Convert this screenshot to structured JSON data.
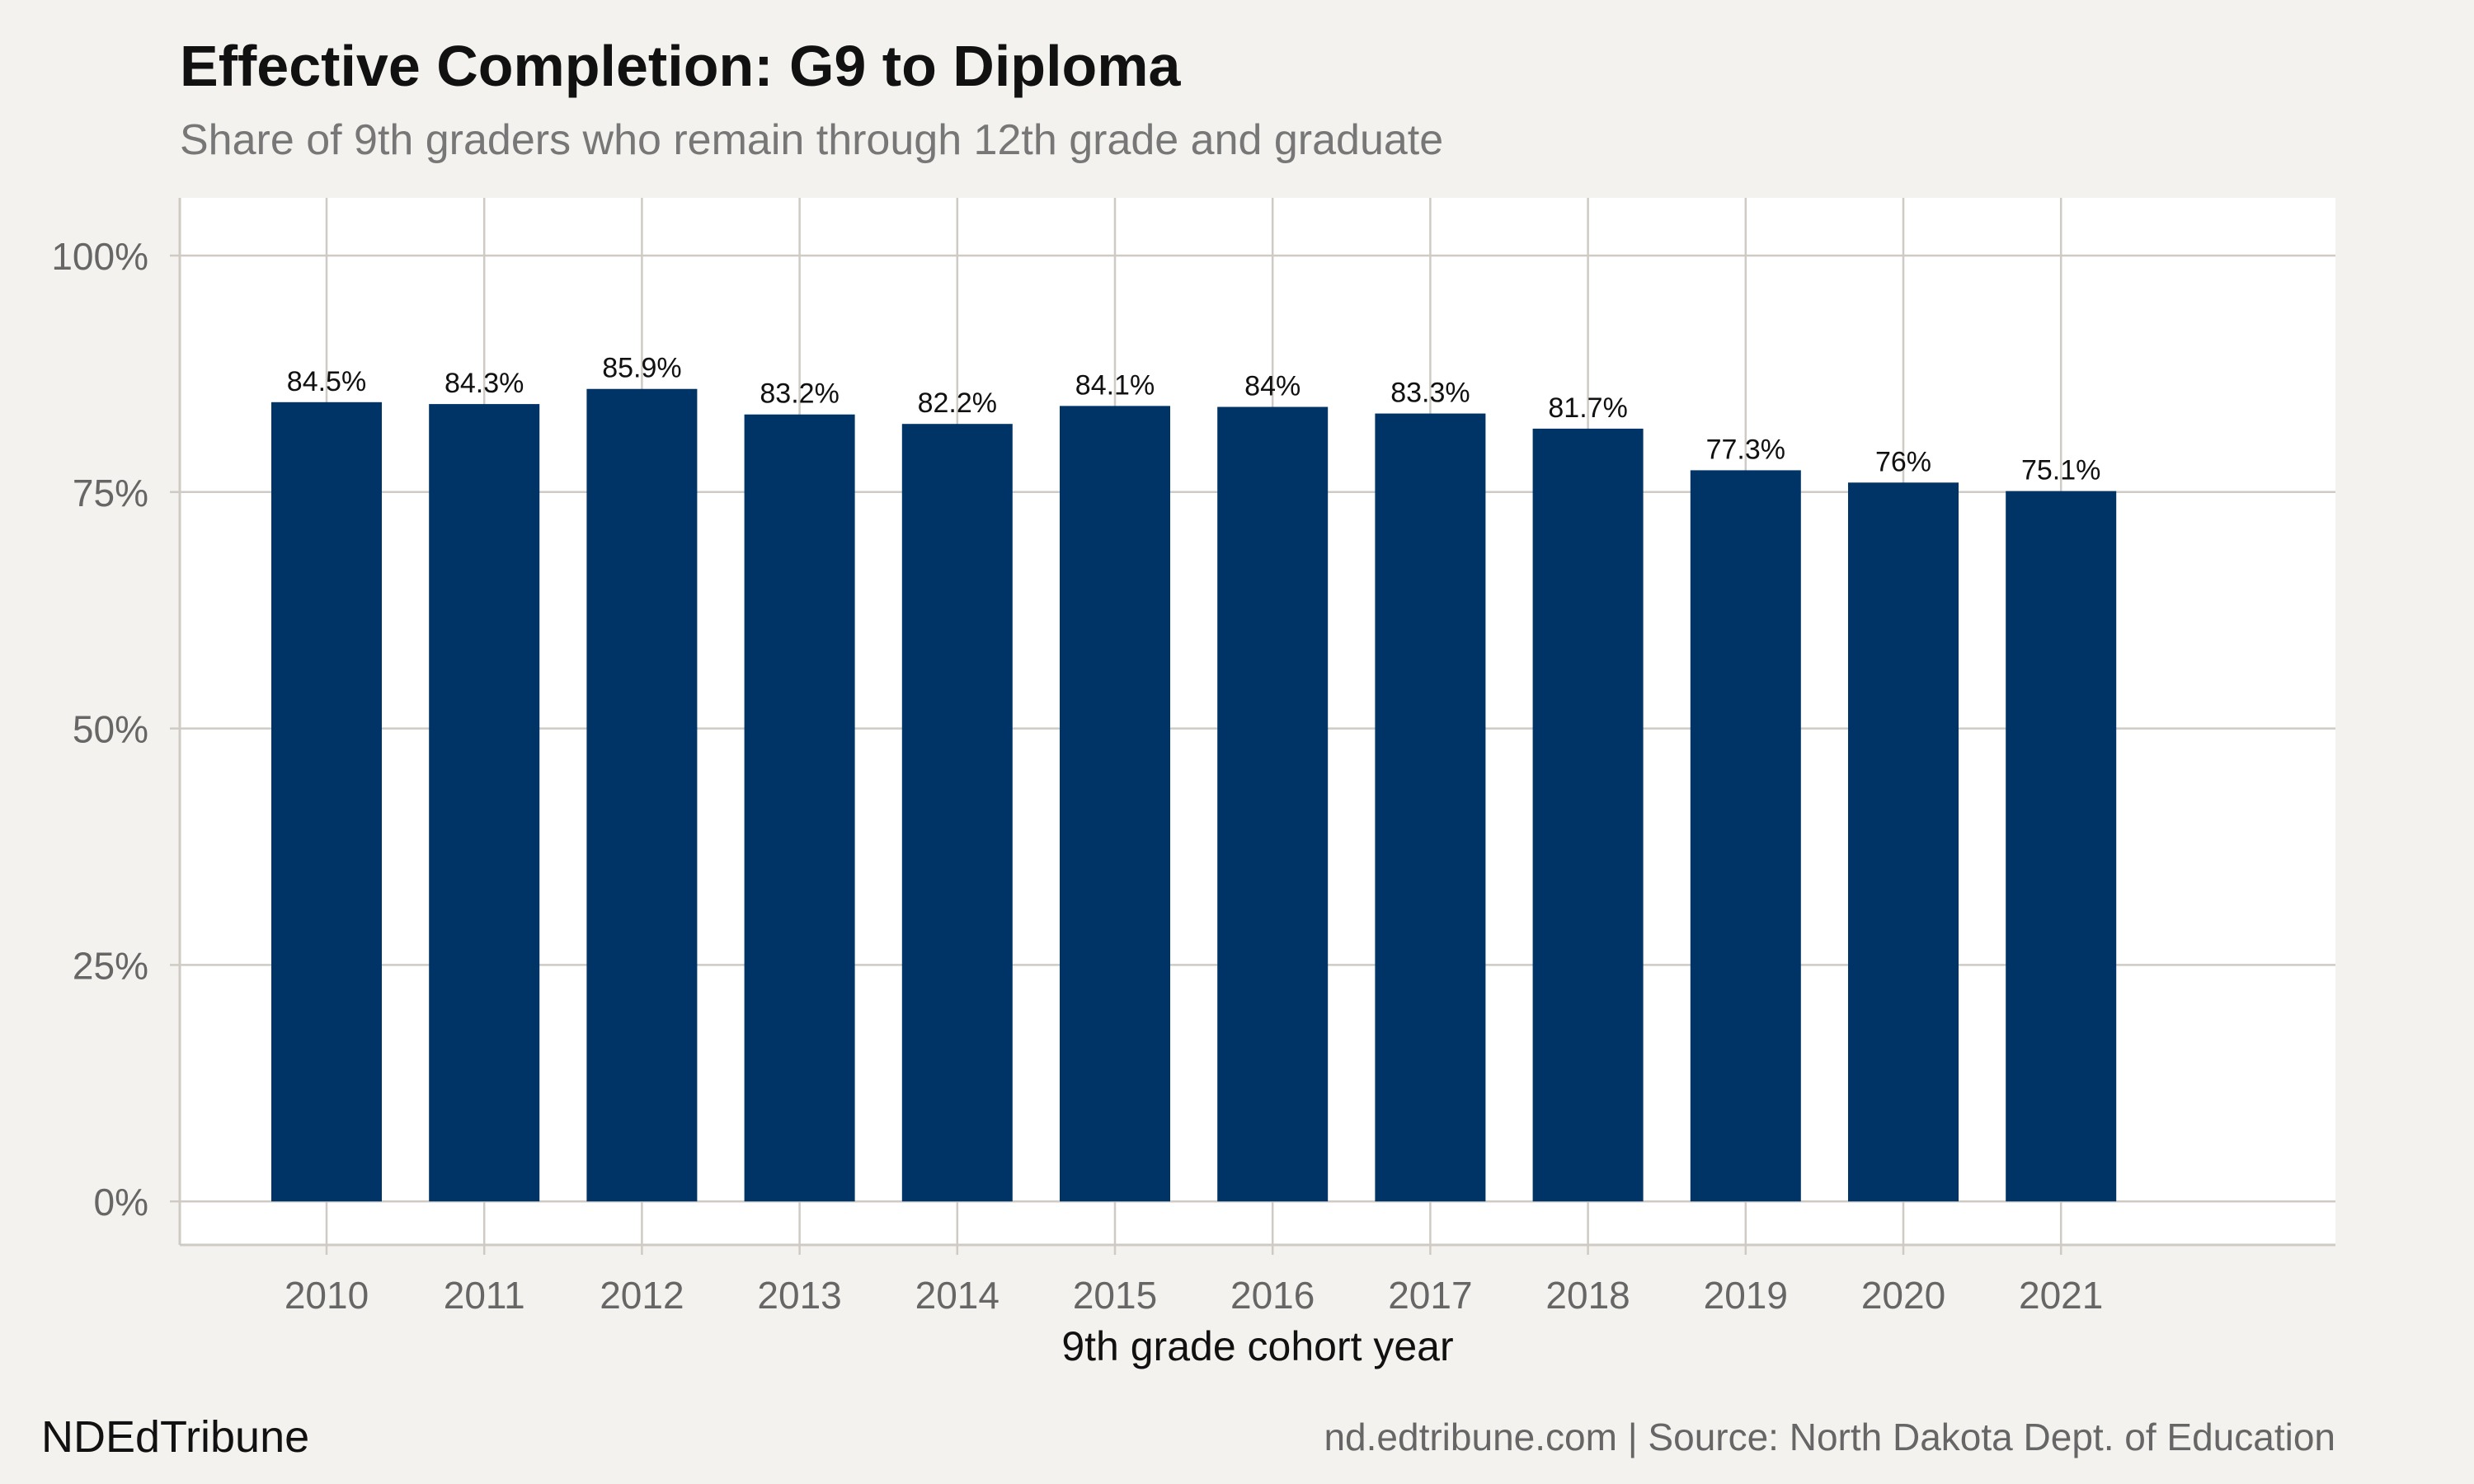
{
  "header": {
    "title": "Effective Completion: G9 to Diploma",
    "subtitle": "Share of 9th graders who remain through 12th grade and graduate"
  },
  "footer": {
    "brand": "NDEdTribune",
    "source": "nd.edtribune.com | Source: North Dakota Dept. of Education"
  },
  "colors": {
    "bar": "#003366",
    "panel": "#ffffff",
    "background": "#f4f2ee",
    "grid": "#cfcbc4",
    "axis_text": "#666666",
    "label_text": "#111111"
  },
  "chart_data": {
    "type": "bar",
    "title": "Effective Completion: G9 to Diploma",
    "subtitle": "Share of 9th graders who remain through 12th grade and graduate",
    "xlabel": "9th grade cohort year",
    "ylabel": "",
    "categories": [
      "2010",
      "2011",
      "2012",
      "2013",
      "2014",
      "2015",
      "2016",
      "2017",
      "2018",
      "2019",
      "2020",
      "2021"
    ],
    "values": [
      84.5,
      84.3,
      85.9,
      83.2,
      82.2,
      84.1,
      84.0,
      83.3,
      81.7,
      77.3,
      76.0,
      75.1
    ],
    "data_labels": [
      "84.5%",
      "84.3%",
      "85.9%",
      "83.2%",
      "82.2%",
      "84.1%",
      "84%",
      "83.3%",
      "81.7%",
      "77.3%",
      "76%",
      "75.1%"
    ],
    "y_ticks": [
      0,
      25,
      50,
      75,
      100
    ],
    "y_tick_labels": [
      "0%",
      "25%",
      "50%",
      "75%",
      "100%"
    ],
    "ylim": [
      -4.6,
      106.1
    ],
    "grid": true,
    "legend": "none"
  }
}
